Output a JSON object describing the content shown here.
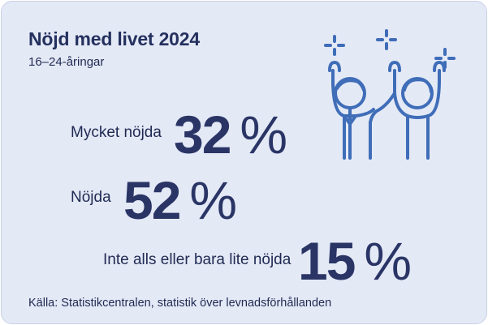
{
  "title": "Nöjd med livet 2024",
  "subtitle": "16–24-åringar",
  "stats": [
    {
      "label": "Mycket nöjda",
      "value": "32",
      "unit": "%"
    },
    {
      "label": "Nöjda",
      "value": "52",
      "unit": "%"
    },
    {
      "label": "Inte alls eller bara lite nöjda",
      "value": "15",
      "unit": "%"
    }
  ],
  "source": "Källa: Statistikcentralen, statistik över levnadsförhållanden",
  "icon": "two-people-celebrating-icon",
  "colors": {
    "background": "#e4e9f6",
    "text": "#24305e",
    "icon": "#3f6db8"
  }
}
